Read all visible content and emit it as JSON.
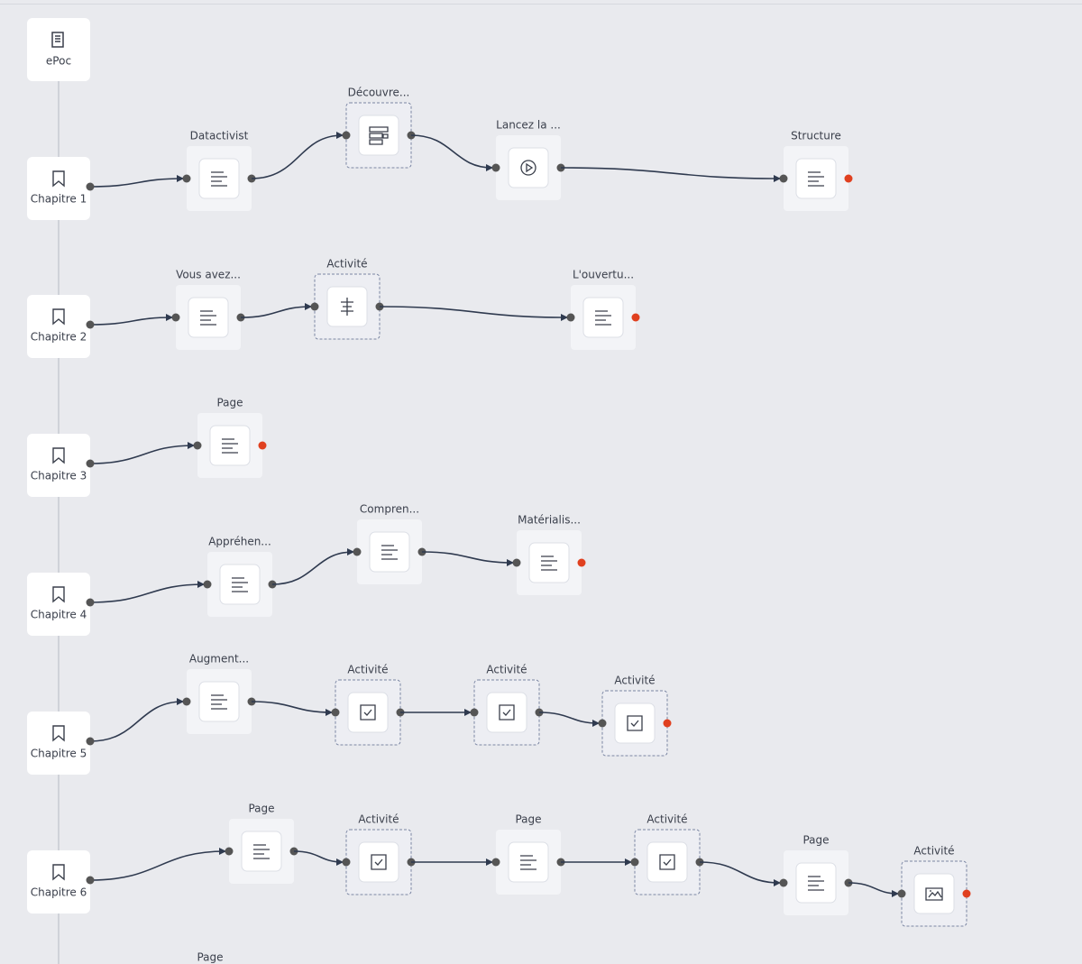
{
  "root": {
    "label": "ePoc"
  },
  "chapters": [
    {
      "label": "Chapitre 1",
      "nodes": [
        {
          "label": "Datactivist"
        },
        {
          "label": "Découvre..."
        },
        {
          "label": "Lancez la ..."
        },
        {
          "label": "Structure"
        }
      ]
    },
    {
      "label": "Chapitre 2",
      "nodes": [
        {
          "label": "Vous avez..."
        },
        {
          "label": "Activité"
        },
        {
          "label": "L'ouvertu..."
        }
      ]
    },
    {
      "label": "Chapitre 3",
      "nodes": [
        {
          "label": "Page"
        }
      ]
    },
    {
      "label": "Chapitre 4",
      "nodes": [
        {
          "label": "Appréhen..."
        },
        {
          "label": "Compren..."
        },
        {
          "label": "Matérialis..."
        }
      ]
    },
    {
      "label": "Chapitre 5",
      "nodes": [
        {
          "label": "Augment..."
        },
        {
          "label": "Activité"
        },
        {
          "label": "Activité"
        },
        {
          "label": "Activité"
        }
      ]
    },
    {
      "label": "Chapitre 6",
      "nodes": [
        {
          "label": "Page"
        },
        {
          "label": "Activité"
        },
        {
          "label": "Page"
        },
        {
          "label": "Activité"
        },
        {
          "label": "Page"
        },
        {
          "label": "Activité"
        }
      ]
    }
  ],
  "bottom_node": {
    "label": "Page"
  }
}
